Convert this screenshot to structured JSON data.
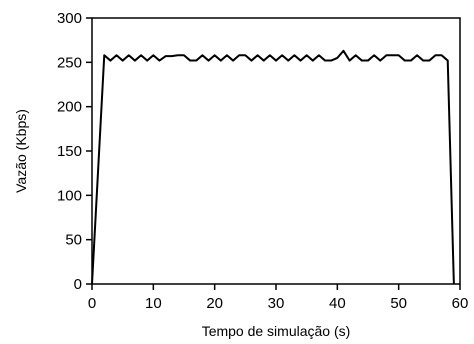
{
  "chart_data": {
    "type": "line",
    "title": "",
    "xlabel": "Tempo de simulação (s)",
    "ylabel": "Vazão (Kbps)",
    "xlim": [
      0,
      60
    ],
    "ylim": [
      0,
      300
    ],
    "xticks": [
      0,
      10,
      20,
      30,
      40,
      50,
      60
    ],
    "yticks": [
      0,
      50,
      100,
      150,
      200,
      250,
      300
    ],
    "grid": false,
    "legend": "none",
    "series": [
      {
        "color": "#000000",
        "x": [
          0,
          2,
          3,
          4,
          5,
          6,
          7,
          8,
          9,
          10,
          11,
          12,
          13,
          14,
          15,
          16,
          17,
          18,
          19,
          20,
          21,
          22,
          23,
          24,
          25,
          26,
          27,
          28,
          29,
          30,
          31,
          32,
          33,
          34,
          35,
          36,
          37,
          38,
          39,
          40,
          41,
          42,
          43,
          44,
          45,
          46,
          47,
          48,
          49,
          50,
          51,
          52,
          53,
          54,
          55,
          56,
          57,
          58,
          59
        ],
        "y": [
          0,
          258,
          252,
          258,
          252,
          258,
          252,
          258,
          252,
          258,
          252,
          257,
          257,
          258,
          258,
          252,
          252,
          258,
          252,
          258,
          252,
          258,
          252,
          258,
          258,
          252,
          258,
          252,
          258,
          252,
          258,
          252,
          258,
          252,
          258,
          252,
          258,
          252,
          252,
          255,
          263,
          252,
          258,
          252,
          252,
          258,
          252,
          258,
          258,
          258,
          252,
          252,
          258,
          252,
          252,
          258,
          258,
          252,
          0
        ]
      }
    ]
  }
}
